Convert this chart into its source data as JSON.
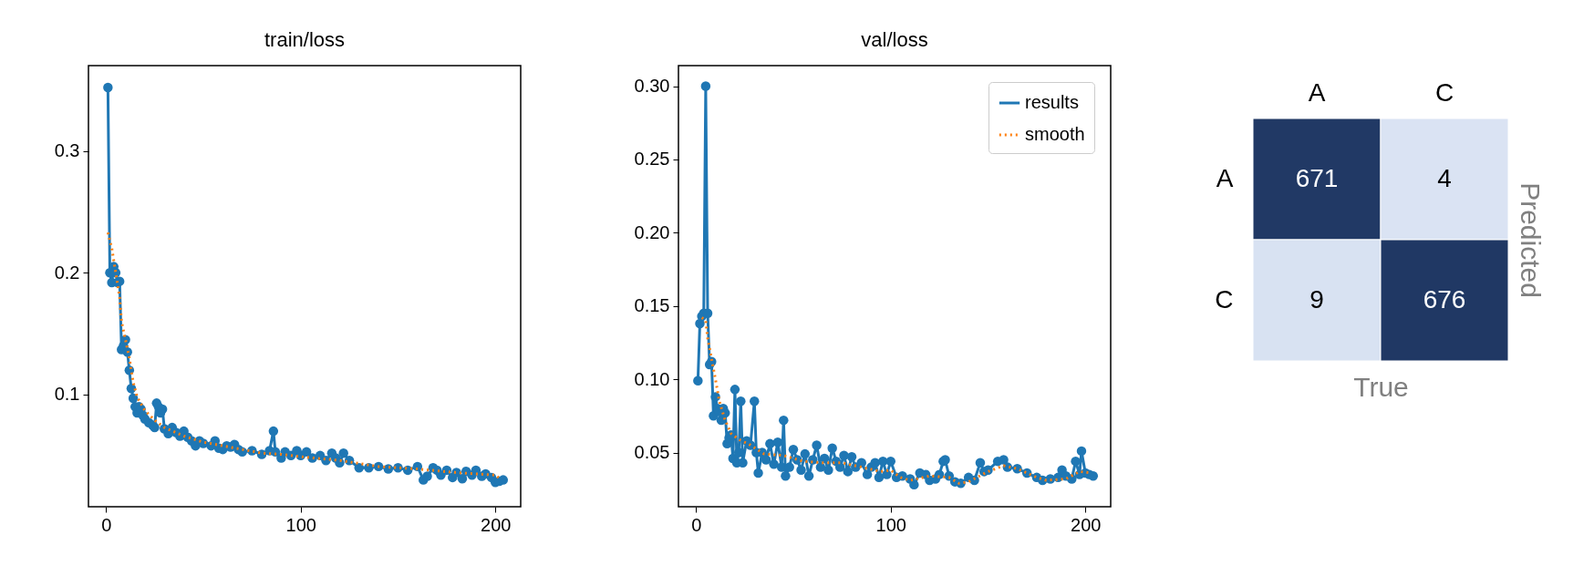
{
  "chart_data": [
    {
      "type": "line",
      "title": "train/loss",
      "xlim": [
        -9,
        213
      ],
      "xticks": [
        0,
        100,
        200
      ],
      "ylim": [
        0.008,
        0.37
      ],
      "yticks": [
        0.1,
        0.2,
        0.3
      ],
      "grid": false,
      "legend": false,
      "series": [
        {
          "color": "#1f77b4",
          "marker": "circle",
          "line_style": "solid",
          "x": [
            1,
            2,
            3,
            4,
            5,
            6,
            7,
            8,
            9,
            10,
            11,
            12,
            13,
            14,
            15,
            16,
            17,
            18,
            19,
            20,
            22,
            24,
            25,
            26,
            27,
            28,
            29,
            30,
            32,
            34,
            36,
            38,
            40,
            42,
            44,
            46,
            48,
            50,
            54,
            56,
            58,
            60,
            62,
            64,
            66,
            68,
            70,
            75,
            80,
            84,
            86,
            87,
            90,
            92,
            95,
            98,
            100,
            103,
            106,
            110,
            113,
            116,
            118,
            120,
            122,
            125,
            130,
            135,
            140,
            145,
            150,
            155,
            160,
            163,
            165,
            168,
            170,
            172,
            175,
            178,
            180,
            183,
            185,
            188,
            190,
            193,
            195,
            198,
            200,
            202,
            204
          ],
          "values": [
            0.352,
            0.2,
            0.192,
            0.205,
            0.2,
            0.192,
            0.193,
            0.137,
            0.14,
            0.145,
            0.135,
            0.12,
            0.105,
            0.097,
            0.09,
            0.085,
            0.09,
            0.088,
            0.083,
            0.08,
            0.077,
            0.075,
            0.073,
            0.093,
            0.09,
            0.085,
            0.088,
            0.072,
            0.068,
            0.073,
            0.069,
            0.066,
            0.07,
            0.065,
            0.062,
            0.058,
            0.062,
            0.06,
            0.058,
            0.062,
            0.056,
            0.055,
            0.058,
            0.057,
            0.059,
            0.055,
            0.053,
            0.054,
            0.051,
            0.054,
            0.07,
            0.053,
            0.048,
            0.053,
            0.05,
            0.054,
            0.05,
            0.053,
            0.048,
            0.05,
            0.046,
            0.052,
            0.048,
            0.044,
            0.052,
            0.046,
            0.04,
            0.04,
            0.041,
            0.039,
            0.04,
            0.038,
            0.041,
            0.03,
            0.033,
            0.04,
            0.038,
            0.034,
            0.038,
            0.032,
            0.036,
            0.031,
            0.037,
            0.034,
            0.038,
            0.033,
            0.035,
            0.032,
            0.028,
            0.029,
            0.03
          ]
        },
        {
          "color": "#ff7f0e",
          "marker": "none",
          "line_style": "dotted",
          "x": [
            1,
            3,
            5,
            7,
            8,
            10,
            12,
            14,
            16,
            20,
            25,
            30,
            40,
            50,
            60,
            80,
            90,
            100,
            120,
            140,
            160,
            180,
            200,
            203
          ],
          "values": [
            0.233,
            0.22,
            0.2,
            0.18,
            0.16,
            0.145,
            0.13,
            0.11,
            0.098,
            0.087,
            0.079,
            0.073,
            0.066,
            0.061,
            0.058,
            0.052,
            0.051,
            0.049,
            0.046,
            0.041,
            0.039,
            0.036,
            0.034,
            0.03
          ]
        }
      ]
    },
    {
      "type": "line",
      "title": "val/loss",
      "xlim": [
        -9,
        213
      ],
      "xticks": [
        0,
        100,
        200
      ],
      "ylim": [
        0.013,
        0.314
      ],
      "yticks": [
        0.05,
        {
          "value": 0.1,
          "label": "0.10"
        },
        0.15,
        {
          "value": 0.2,
          "label": "0.20"
        },
        0.25,
        {
          "value": 0.3,
          "label": "0.30"
        }
      ],
      "grid": false,
      "legend": "top right",
      "series": [
        {
          "name": "results",
          "color": "#1f77b4",
          "marker": "circle",
          "line_style": "solid",
          "x": [
            1,
            2,
            3,
            4,
            5,
            6,
            7,
            8,
            9,
            10,
            11,
            12,
            13,
            14,
            15,
            16,
            17,
            18,
            19,
            20,
            21,
            22,
            23,
            24,
            26,
            28,
            30,
            31,
            32,
            34,
            36,
            38,
            40,
            42,
            44,
            45,
            46,
            48,
            50,
            52,
            54,
            56,
            58,
            60,
            62,
            64,
            66,
            68,
            70,
            72,
            74,
            76,
            78,
            80,
            82,
            85,
            88,
            90,
            92,
            94,
            96,
            98,
            100,
            103,
            106,
            110,
            112,
            115,
            118,
            120,
            123,
            125,
            127,
            128,
            130,
            133,
            136,
            140,
            143,
            146,
            148,
            150,
            155,
            158,
            160,
            165,
            170,
            175,
            178,
            182,
            186,
            188,
            190,
            193,
            195,
            197,
            198,
            200,
            202,
            204
          ],
          "values": [
            0.099,
            0.138,
            0.143,
            0.145,
            0.3,
            0.145,
            0.11,
            0.112,
            0.075,
            0.088,
            0.08,
            0.078,
            0.072,
            0.08,
            0.077,
            0.056,
            0.06,
            0.062,
            0.046,
            0.093,
            0.043,
            0.05,
            0.085,
            0.043,
            0.058,
            0.055,
            0.085,
            0.05,
            0.036,
            0.05,
            0.045,
            0.056,
            0.042,
            0.057,
            0.04,
            0.072,
            0.034,
            0.04,
            0.052,
            0.045,
            0.038,
            0.049,
            0.034,
            0.045,
            0.055,
            0.04,
            0.046,
            0.038,
            0.053,
            0.044,
            0.04,
            0.048,
            0.037,
            0.047,
            0.04,
            0.043,
            0.035,
            0.04,
            0.043,
            0.033,
            0.044,
            0.035,
            0.044,
            0.033,
            0.034,
            0.032,
            0.028,
            0.036,
            0.035,
            0.031,
            0.032,
            0.035,
            0.044,
            0.045,
            0.034,
            0.03,
            0.029,
            0.033,
            0.031,
            0.043,
            0.037,
            0.038,
            0.044,
            0.045,
            0.04,
            0.039,
            0.036,
            0.033,
            0.031,
            0.032,
            0.033,
            0.038,
            0.034,
            0.032,
            0.044,
            0.035,
            0.051,
            0.036,
            0.035,
            0.034
          ]
        },
        {
          "name": "smooth",
          "color": "#ff7f0e",
          "marker": "none",
          "line_style": "dotted",
          "x": [
            3,
            5,
            6,
            8,
            10,
            12,
            15,
            18,
            22,
            28,
            35,
            45,
            55,
            65,
            75,
            85,
            95,
            100,
            105,
            110,
            120,
            130,
            135,
            140,
            150,
            158,
            165,
            175,
            180,
            190,
            197,
            203
          ],
          "values": [
            0.142,
            0.14,
            0.128,
            0.114,
            0.1,
            0.085,
            0.072,
            0.063,
            0.059,
            0.055,
            0.049,
            0.048,
            0.044,
            0.043,
            0.043,
            0.04,
            0.037,
            0.038,
            0.033,
            0.031,
            0.034,
            0.033,
            0.029,
            0.03,
            0.037,
            0.041,
            0.039,
            0.033,
            0.031,
            0.032,
            0.037,
            0.036
          ]
        }
      ]
    },
    {
      "type": "heatmap",
      "xlabel": "True",
      "ylabel": "Predicted",
      "categories": [
        "A",
        "C"
      ],
      "y_categories": [
        "A",
        "C"
      ],
      "cells": [
        [
          671,
          4
        ],
        [
          9,
          676
        ]
      ],
      "colors": [
        "#dae3f3",
        "#203864"
      ],
      "data_labels": true
    }
  ]
}
